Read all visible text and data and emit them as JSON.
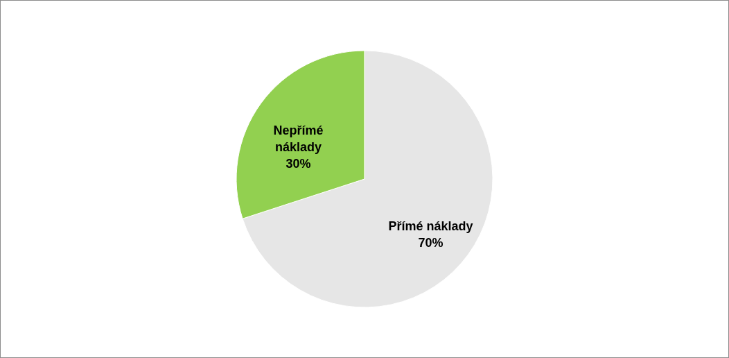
{
  "chart_data": {
    "type": "pie",
    "categories": [
      "Přímé náklady",
      "Nepřímé náklady"
    ],
    "values": [
      70,
      30
    ],
    "colors": [
      "#e6e6e6",
      "#92d050"
    ],
    "value_labels": [
      "70%",
      "30%"
    ]
  }
}
